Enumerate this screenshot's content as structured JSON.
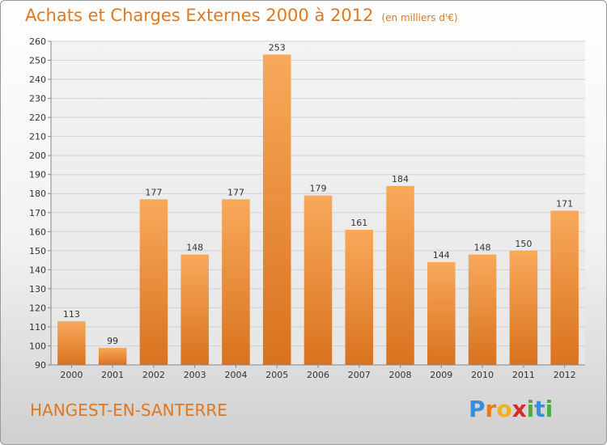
{
  "header": {
    "title": "Achats et Charges Externes 2000 à 2012",
    "unit": "(en milliers d'€)"
  },
  "footer": {
    "commune": "HANGEST-EN-SANTERRE",
    "logo_letters": [
      "P",
      "r",
      "o",
      "x",
      "i",
      "t",
      "i"
    ],
    "logo_colors": [
      "#3a8fd6",
      "#e87a1c",
      "#f0b21a",
      "#d62b2b",
      "#4cae3c",
      "#3a8fd6",
      "#4cae3c"
    ]
  },
  "colors": {
    "accent": "#e0781f",
    "bar_light": "#f8a95a",
    "bar_dark": "#d9721e"
  },
  "chart_data": {
    "type": "bar",
    "categories": [
      "2000",
      "2001",
      "2002",
      "2003",
      "2004",
      "2005",
      "2006",
      "2007",
      "2008",
      "2009",
      "2010",
      "2011",
      "2012"
    ],
    "values": [
      113,
      99,
      177,
      148,
      177,
      253,
      179,
      161,
      184,
      144,
      148,
      150,
      171
    ],
    "ylim": [
      90,
      260
    ],
    "yticks": [
      90,
      100,
      110,
      120,
      130,
      140,
      150,
      160,
      170,
      180,
      190,
      200,
      210,
      220,
      230,
      240,
      250,
      260
    ],
    "grid": true,
    "data_labels": true
  }
}
